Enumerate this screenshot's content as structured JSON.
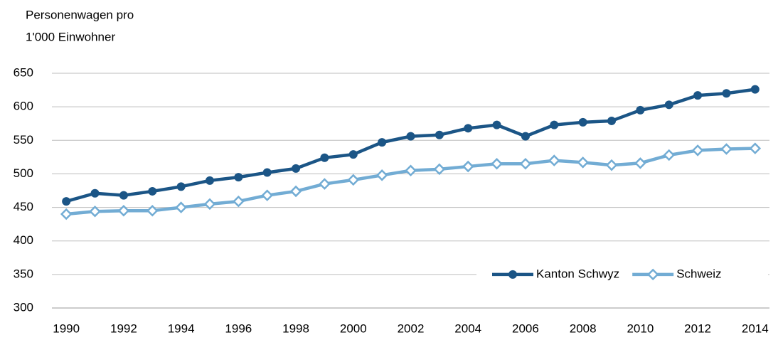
{
  "chart_data": {
    "type": "line",
    "ylabel_lines": [
      "Personenwagen pro",
      "1'000 Einwohner"
    ],
    "categories": [
      "1990",
      null,
      "1992",
      null,
      "1994",
      null,
      "1996",
      null,
      "1998",
      null,
      "2000",
      null,
      "2002",
      null,
      "2004",
      null,
      "2006",
      null,
      "2008",
      null,
      "2010",
      null,
      "2012",
      null,
      "2014"
    ],
    "series": [
      {
        "name": "Kanton Schwyz",
        "color": "#1b5586",
        "marker": "circle",
        "values": [
          459,
          471,
          468,
          474,
          481,
          490,
          495,
          502,
          508,
          524,
          529,
          547,
          556,
          558,
          568,
          573,
          556,
          573,
          577,
          579,
          595,
          603,
          617,
          620,
          626
        ]
      },
      {
        "name": "Schweiz",
        "color": "#72acd4",
        "marker": "diamond",
        "values": [
          440,
          444,
          445,
          445,
          450,
          455,
          459,
          468,
          474,
          485,
          491,
          498,
          505,
          507,
          511,
          515,
          515,
          520,
          517,
          513,
          516,
          528,
          535,
          537,
          538
        ]
      }
    ],
    "ylim": [
      300,
      650
    ],
    "yticks": [
      300,
      350,
      400,
      450,
      500,
      550,
      600,
      650
    ],
    "grid": true,
    "legend": "lower right"
  }
}
